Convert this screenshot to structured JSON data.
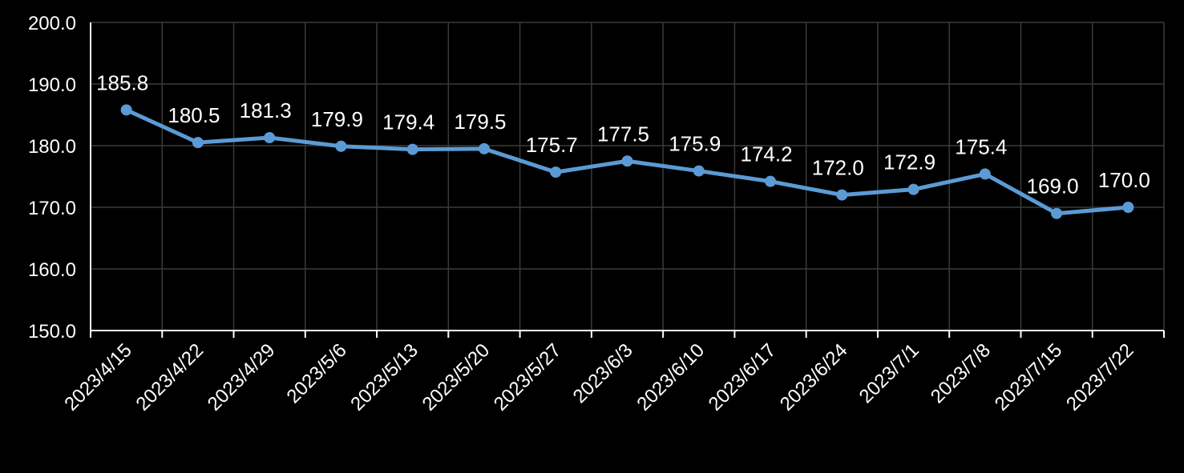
{
  "chart_data": {
    "type": "line",
    "title": "",
    "xlabel": "",
    "ylabel": "",
    "categories": [
      "2023/4/15",
      "2023/4/22",
      "2023/4/29",
      "2023/5/6",
      "2023/5/13",
      "2023/5/20",
      "2023/5/27",
      "2023/6/3",
      "2023/6/10",
      "2023/6/17",
      "2023/6/24",
      "2023/7/1",
      "2023/7/8",
      "2023/7/15",
      "2023/7/22"
    ],
    "series": [
      {
        "values": [
          185.8,
          180.5,
          181.3,
          179.9,
          179.4,
          179.5,
          175.7,
          177.5,
          175.9,
          174.2,
          172.0,
          172.9,
          175.4,
          169.0,
          170.0
        ]
      }
    ],
    "data_labels": [
      "185.8",
      "180.5",
      "181.3",
      "179.9",
      "179.4",
      "179.5",
      "175.7",
      "177.5",
      "175.9",
      "174.2",
      "172.0",
      "172.9",
      "175.4",
      "169.0",
      "170.0"
    ],
    "ylim": [
      150,
      200
    ],
    "yticks": [
      150,
      160,
      170,
      180,
      190,
      200
    ],
    "ytick_labels": [
      "150.0",
      "160.0",
      "170.0",
      "180.0",
      "190.0",
      "200.0"
    ],
    "grid": true,
    "legend": "none",
    "colors": {
      "background": "#000000",
      "line": "#5b9bd5",
      "grid": "#3a3a3a",
      "axis": "#ffffff",
      "text": "#ffffff"
    }
  }
}
